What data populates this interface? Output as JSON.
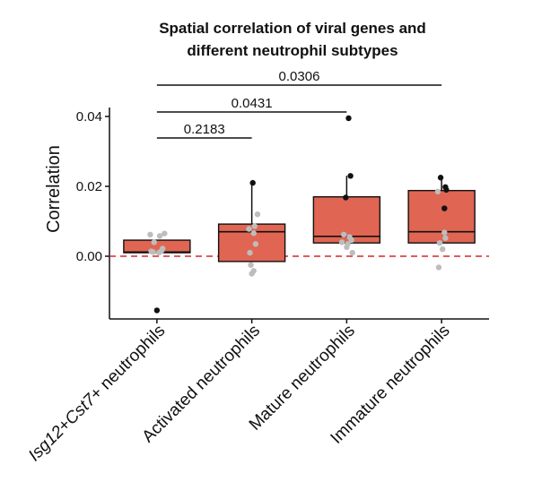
{
  "chart_data": {
    "type": "box",
    "title_lines": [
      "Spatial correlation of viral genes and",
      "different neutrophil subtypes"
    ],
    "ylabel": "Correlation",
    "ylim": [
      -0.018,
      0.042
    ],
    "yticks": [
      0.0,
      0.02,
      0.04
    ],
    "ytick_labels": [
      "0.00",
      "0.02",
      "0.04"
    ],
    "reference_line": {
      "y": 0,
      "color": "#d62728",
      "style": "dashed"
    },
    "box_fill": "#e06553",
    "categories": [
      {
        "prefix": "",
        "italic": "Isg12",
        "mid": "+",
        "italic2": "Cst7",
        "suffix": "+ neutrophils"
      },
      {
        "prefix": "Activated neutrophils",
        "italic": "",
        "mid": "",
        "italic2": "",
        "suffix": ""
      },
      {
        "prefix": "Mature neutrophils",
        "italic": "",
        "mid": "",
        "italic2": "",
        "suffix": ""
      },
      {
        "prefix": "Immature neutrophils",
        "italic": "",
        "mid": "",
        "italic2": "",
        "suffix": ""
      }
    ],
    "boxes": [
      {
        "q1": 0.001,
        "median": 0.0012,
        "q3": 0.0046,
        "whisker_low": 0.001,
        "whisker_high": 0.0046
      },
      {
        "q1": -0.0015,
        "median": 0.007,
        "q3": 0.0092,
        "whisker_low": -0.0015,
        "whisker_high": 0.021
      },
      {
        "q1": 0.0038,
        "median": 0.0057,
        "q3": 0.017,
        "whisker_low": 0.0038,
        "whisker_high": 0.023
      },
      {
        "q1": 0.0038,
        "median": 0.007,
        "q3": 0.0188,
        "whisker_low": 0.0038,
        "whisker_high": 0.0225
      }
    ],
    "points": [
      [
        {
          "x": -0.07,
          "y": 0.0062,
          "c": "gray"
        },
        {
          "x": 0.03,
          "y": 0.0058,
          "c": "gray"
        },
        {
          "x": 0.08,
          "y": 0.0065,
          "c": "gray"
        },
        {
          "x": -0.03,
          "y": 0.004,
          "c": "gray"
        },
        {
          "x": 0.06,
          "y": 0.0022,
          "c": "gray"
        },
        {
          "x": -0.06,
          "y": 0.0014,
          "c": "gray"
        },
        {
          "x": 0.02,
          "y": 0.001,
          "c": "gray"
        },
        {
          "x": -0.04,
          "y": 0.0012,
          "c": "gray"
        },
        {
          "x": 0.05,
          "y": 0.0016,
          "c": "gray"
        },
        {
          "x": 0.0,
          "y": -0.0155,
          "c": "black"
        }
      ],
      [
        {
          "x": 0.06,
          "y": 0.012,
          "c": "gray"
        },
        {
          "x": 0.03,
          "y": 0.0086,
          "c": "gray"
        },
        {
          "x": -0.03,
          "y": 0.0078,
          "c": "gray"
        },
        {
          "x": 0.02,
          "y": 0.0066,
          "c": "gray"
        },
        {
          "x": 0.04,
          "y": 0.0035,
          "c": "gray"
        },
        {
          "x": -0.02,
          "y": 0.001,
          "c": "gray"
        },
        {
          "x": -0.01,
          "y": -0.0025,
          "c": "gray"
        },
        {
          "x": 0.0,
          "y": -0.005,
          "c": "gray"
        },
        {
          "x": 0.02,
          "y": -0.0042,
          "c": "gray"
        },
        {
          "x": 0.01,
          "y": 0.021,
          "c": "black"
        }
      ],
      [
        {
          "x": -0.03,
          "y": 0.0062,
          "c": "gray"
        },
        {
          "x": 0.03,
          "y": 0.0055,
          "c": "gray"
        },
        {
          "x": -0.05,
          "y": 0.004,
          "c": "gray"
        },
        {
          "x": 0.05,
          "y": 0.0046,
          "c": "gray"
        },
        {
          "x": 0.01,
          "y": 0.0035,
          "c": "gray"
        },
        {
          "x": 0.06,
          "y": 0.001,
          "c": "gray"
        },
        {
          "x": 0.02,
          "y": 0.0395,
          "c": "black"
        },
        {
          "x": 0.04,
          "y": 0.023,
          "c": "black"
        },
        {
          "x": -0.01,
          "y": 0.0168,
          "c": "black"
        },
        {
          "x": 0.0,
          "y": 0.0026,
          "c": "gray"
        }
      ],
      [
        {
          "x": -0.04,
          "y": 0.0185,
          "c": "gray"
        },
        {
          "x": 0.03,
          "y": 0.0068,
          "c": "gray"
        },
        {
          "x": 0.04,
          "y": 0.0052,
          "c": "gray"
        },
        {
          "x": -0.02,
          "y": 0.0038,
          "c": "gray"
        },
        {
          "x": 0.01,
          "y": 0.002,
          "c": "gray"
        },
        {
          "x": -0.03,
          "y": -0.0032,
          "c": "gray"
        },
        {
          "x": 0.05,
          "y": 0.019,
          "c": "black"
        },
        {
          "x": -0.01,
          "y": 0.0225,
          "c": "black"
        },
        {
          "x": 0.04,
          "y": 0.0198,
          "c": "black"
        },
        {
          "x": 0.03,
          "y": 0.0137,
          "c": "black"
        }
      ]
    ],
    "comparisons": [
      {
        "from": 0,
        "to": 1,
        "label": "0.2183"
      },
      {
        "from": 0,
        "to": 2,
        "label": "0.0431"
      },
      {
        "from": 0,
        "to": 3,
        "label": "0.0306"
      }
    ]
  }
}
